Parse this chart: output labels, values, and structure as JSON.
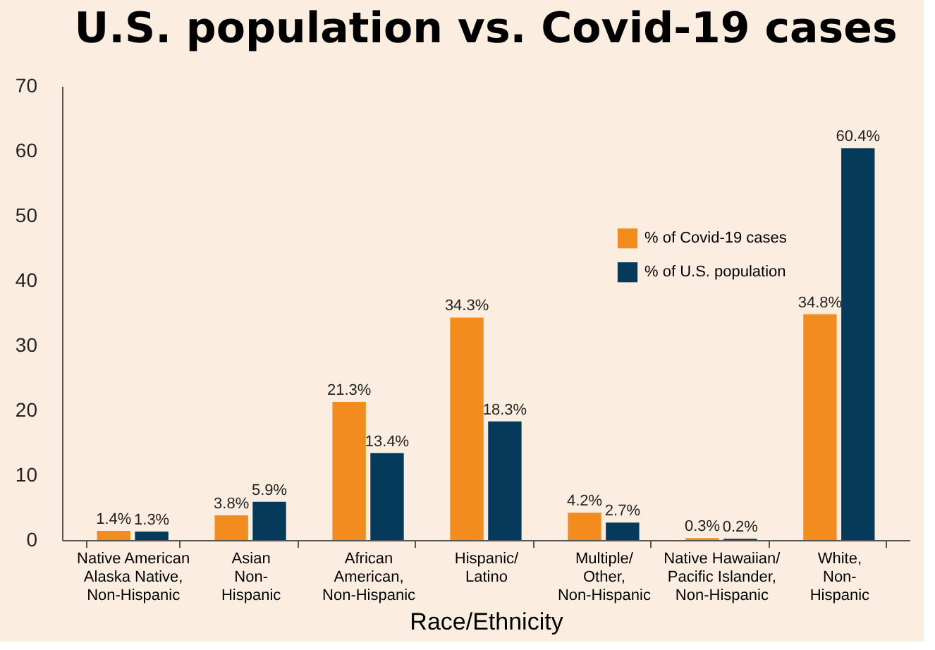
{
  "chart_data": {
    "type": "bar",
    "title": "U.S. population vs. Covid-19 cases",
    "xlabel": "Race/Ethnicity",
    "categories": [
      "Native American\nAlaska Native,\nNon-Hispanic",
      "Asian\nNon-\nHispanic",
      "African\nAmerican,\nNon-Hispanic",
      "Hispanic/\nLatino",
      "Multiple/\nOther,\nNon-Hispanic",
      "Native Hawaiian/\nPacific Islander,\nNon-Hispanic",
      "White,\nNon-\nHispanic"
    ],
    "series": [
      {
        "name": "% of Covid-19 cases",
        "color": "#f28c1e",
        "values": [
          1.4,
          3.8,
          21.3,
          34.3,
          4.2,
          0.3,
          34.8
        ],
        "value_labels": [
          "1.4%",
          "3.8%",
          "21.3%",
          "34.3%",
          "4.2%",
          "0.3%",
          "34.8%"
        ]
      },
      {
        "name": "% of U.S. population",
        "color": "#063a5a",
        "values": [
          1.3,
          5.9,
          13.4,
          18.3,
          2.7,
          0.2,
          60.4
        ],
        "value_labels": [
          "1.3%",
          "5.9%",
          "13.4%",
          "18.3%",
          "2.7%",
          "0.2%",
          "60.4%"
        ]
      }
    ],
    "ylim": [
      0,
      70
    ],
    "yticks": [
      0,
      10,
      20,
      30,
      40,
      50,
      60,
      70
    ],
    "grid": false,
    "legend": "top right"
  }
}
